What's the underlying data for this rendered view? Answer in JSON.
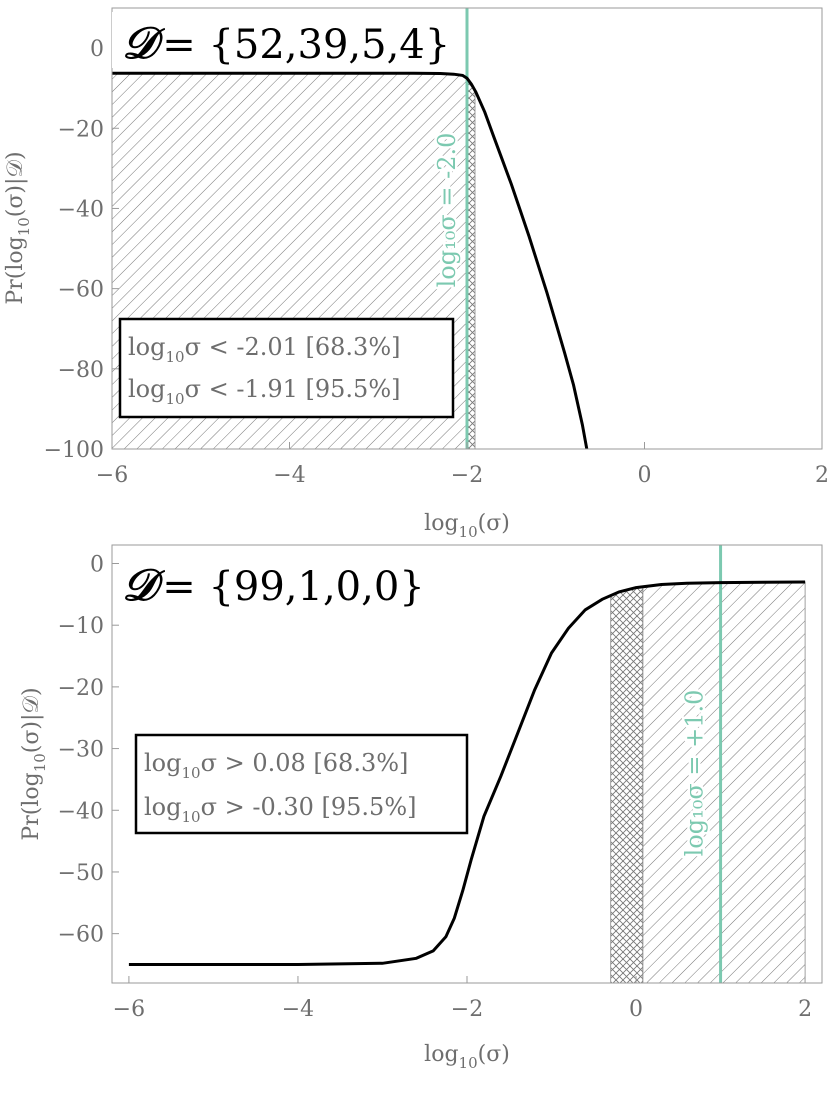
{
  "chart_data": [
    {
      "type": "line",
      "title_symbol": "𝒟",
      "title": "= {52,39,5,4}",
      "xlabel": {
        "base": "log",
        "sub": "10",
        "rest": "(σ)"
      },
      "ylabel": {
        "pre": "Pr(log",
        "sub": "10",
        "rest": "(σ)|𝒟)"
      },
      "xlim": [
        -6,
        2
      ],
      "ylim": [
        -100,
        10
      ],
      "xticks": [
        -6,
        -4,
        -2,
        0,
        2
      ],
      "yticks": [
        0,
        -20,
        -40,
        -60,
        -80,
        -100
      ],
      "xtick_labels": [
        "−6",
        "−4",
        "−2",
        "0",
        "2"
      ],
      "ytick_labels": [
        "0",
        "−20",
        "−40",
        "−60",
        "−80",
        "−100"
      ],
      "grid": false,
      "series": [
        {
          "x": [
            -6,
            -5,
            -4,
            -3,
            -2.6,
            -2.3,
            -2.15,
            -2.05,
            -2.0,
            -1.95,
            -1.9,
            -1.8,
            -1.7,
            -1.6,
            -1.5,
            -1.4,
            -1.3,
            -1.2,
            -1.1,
            -1.0,
            -0.9,
            -0.8,
            -0.7,
            -0.65
          ],
          "y": [
            -6.3,
            -6.3,
            -6.3,
            -6.3,
            -6.3,
            -6.35,
            -6.5,
            -6.8,
            -7.5,
            -9,
            -11,
            -16,
            -22,
            -28,
            -34,
            -40.5,
            -47,
            -54,
            -61,
            -68.5,
            -76,
            -84,
            -94,
            -100
          ]
        }
      ],
      "hatch_regions": [
        {
          "from": -6,
          "to": -2.01,
          "style": "single"
        },
        {
          "from": -2.01,
          "to": -1.91,
          "style": "cross"
        }
      ],
      "vline": {
        "x": -2.0,
        "label": "log₁₀σ = -2.0",
        "color": "#7cc9b0"
      },
      "legend_box": {
        "placement": "lower-left",
        "lines": [
          {
            "base": "log",
            "sub": "10",
            "rest": "σ < -2.01 [68.3%]"
          },
          {
            "base": "log",
            "sub": "10",
            "rest": "σ < -1.91 [95.5%]"
          }
        ]
      },
      "colors": {
        "curve": "#000000",
        "hatch": "#777777",
        "frame": "#9a9a9a"
      }
    },
    {
      "type": "line",
      "title_symbol": "𝒟",
      "title": " = {99,1,0,0}",
      "xlabel": {
        "base": "log",
        "sub": "10",
        "rest": "(σ)"
      },
      "ylabel": {
        "pre": "Pr(log",
        "sub": "10",
        "rest": "(σ)|𝒟)"
      },
      "xlim": [
        -6.2,
        2.2
      ],
      "ylim": [
        -68,
        3
      ],
      "xticks": [
        -6,
        -4,
        -2,
        0,
        2
      ],
      "yticks": [
        0,
        -10,
        -20,
        -30,
        -40,
        -50,
        -60
      ],
      "xtick_labels": [
        "−6",
        "−4",
        "−2",
        "0",
        "2"
      ],
      "ytick_labels": [
        "0",
        "−10",
        "−20",
        "−30",
        "−40",
        "−50",
        "−60"
      ],
      "grid": false,
      "series": [
        {
          "x": [
            -6,
            -5,
            -4,
            -3,
            -2.6,
            -2.4,
            -2.25,
            -2.15,
            -2.05,
            -1.95,
            -1.8,
            -1.6,
            -1.4,
            -1.2,
            -1.0,
            -0.8,
            -0.6,
            -0.4,
            -0.2,
            0.0,
            0.3,
            0.6,
            1.0,
            1.5,
            2.0
          ],
          "y": [
            -65,
            -65,
            -65,
            -64.8,
            -64,
            -62.8,
            -60.5,
            -57.5,
            -53,
            -48,
            -41,
            -34.5,
            -27.5,
            -20.5,
            -14.5,
            -10.5,
            -7.5,
            -5.8,
            -4.6,
            -3.9,
            -3.4,
            -3.2,
            -3.1,
            -3.05,
            -3.0
          ]
        }
      ],
      "hatch_regions": [
        {
          "from": -0.3,
          "to": 0.08,
          "style": "cross"
        },
        {
          "from": 0.08,
          "to": 2.0,
          "style": "single"
        }
      ],
      "vline": {
        "x": 1.0,
        "label": "log₁₀σ = +1.0",
        "color": "#7cc9b0"
      },
      "legend_box": {
        "placement": "middle-left",
        "lines": [
          {
            "base": "log",
            "sub": "10",
            "rest": "σ > 0.08 [68.3%]"
          },
          {
            "base": "log",
            "sub": "10",
            "rest": "σ > -0.30 [95.5%]"
          }
        ]
      },
      "colors": {
        "curve": "#000000",
        "hatch": "#777777",
        "frame": "#9a9a9a"
      }
    }
  ]
}
